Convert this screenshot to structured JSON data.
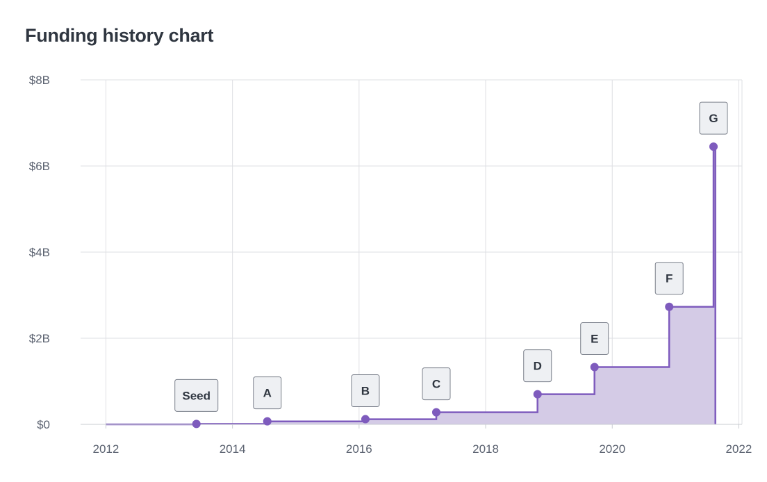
{
  "chart_data": {
    "type": "line",
    "title": "Funding history chart",
    "step": true,
    "x_range": [
      2011.6,
      2022.05
    ],
    "ylim": [
      0,
      8
    ],
    "y_unit": "billion USD",
    "x_ticks": [
      {
        "value": 2012,
        "label": "2012"
      },
      {
        "value": 2014,
        "label": "2014"
      },
      {
        "value": 2016,
        "label": "2016"
      },
      {
        "value": 2018,
        "label": "2018"
      },
      {
        "value": 2020,
        "label": "2020"
      },
      {
        "value": 2022,
        "label": "2022"
      }
    ],
    "y_ticks": [
      {
        "value": 0,
        "label": "$0"
      },
      {
        "value": 2,
        "label": "$2B"
      },
      {
        "value": 4,
        "label": "$4B"
      },
      {
        "value": 6,
        "label": "$6B"
      },
      {
        "value": 8,
        "label": "$8B"
      }
    ],
    "grid": true,
    "series_start": {
      "x": 2012.0,
      "y": 0
    },
    "series_end": {
      "x": 2021.63
    },
    "rounds": [
      {
        "label": "Seed",
        "x": 2013.43,
        "y": 0.01
      },
      {
        "label": "A",
        "x": 2014.55,
        "y": 0.07
      },
      {
        "label": "B",
        "x": 2016.1,
        "y": 0.12
      },
      {
        "label": "C",
        "x": 2017.22,
        "y": 0.28
      },
      {
        "label": "D",
        "x": 2018.82,
        "y": 0.7
      },
      {
        "label": "E",
        "x": 2019.72,
        "y": 1.33
      },
      {
        "label": "F",
        "x": 2020.9,
        "y": 2.73
      },
      {
        "label": "G",
        "x": 2021.6,
        "y": 6.45
      }
    ],
    "colors": {
      "line": "#7e5bbd",
      "area": "#d4cbe6",
      "grid": "#dedfe3",
      "label_bg": "#eef0f3",
      "label_border": "#7b808b"
    }
  }
}
